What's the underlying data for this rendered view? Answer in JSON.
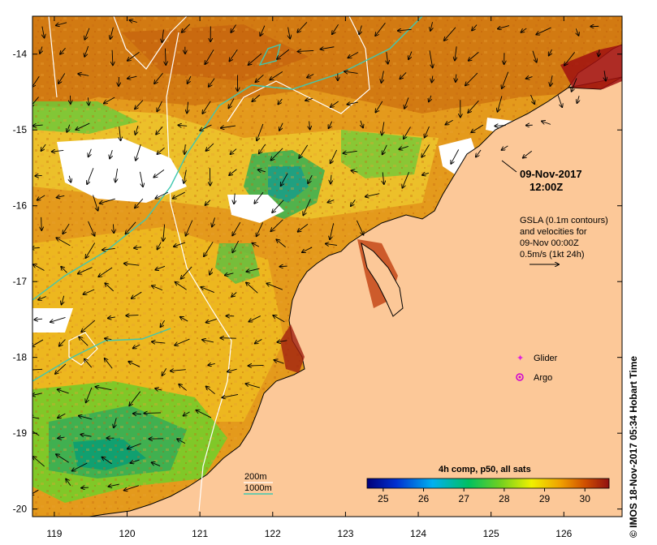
{
  "map": {
    "lon_ticks": [
      "119",
      "120",
      "121",
      "122",
      "123",
      "124",
      "125",
      "126"
    ],
    "lat_ticks": [
      "-14",
      "-15",
      "-16",
      "-17",
      "-18",
      "-19",
      "-20"
    ],
    "lon_range": [
      118.7,
      126.8
    ],
    "lat_range": [
      -20.1,
      -13.5
    ]
  },
  "annotation": {
    "date": "09-Nov-2017",
    "time": "12:00Z",
    "gsla_line1": "GSLA (0.1m contours)",
    "gsla_line2": "and velocities for",
    "gsla_line3": "09-Nov 00:00Z",
    "gsla_line4": "0.5m/s (1kt 24h)"
  },
  "legend": {
    "glider": "Glider",
    "argo": "Argo",
    "depth_200": "200m",
    "depth_1000": "1000m",
    "glider_color": "#e020e0",
    "argo_color": "#d000d0",
    "depth_200_color": "#ffffff",
    "depth_1000_color": "#40c8b0"
  },
  "colorbar": {
    "title": "4h comp, p50, all sats",
    "ticks": [
      "25",
      "26",
      "27",
      "28",
      "29",
      "30"
    ],
    "range": [
      24.6,
      30.6
    ]
  },
  "credit": "© IMOS 18-Nov-2017 05:34 Hobart Time"
}
